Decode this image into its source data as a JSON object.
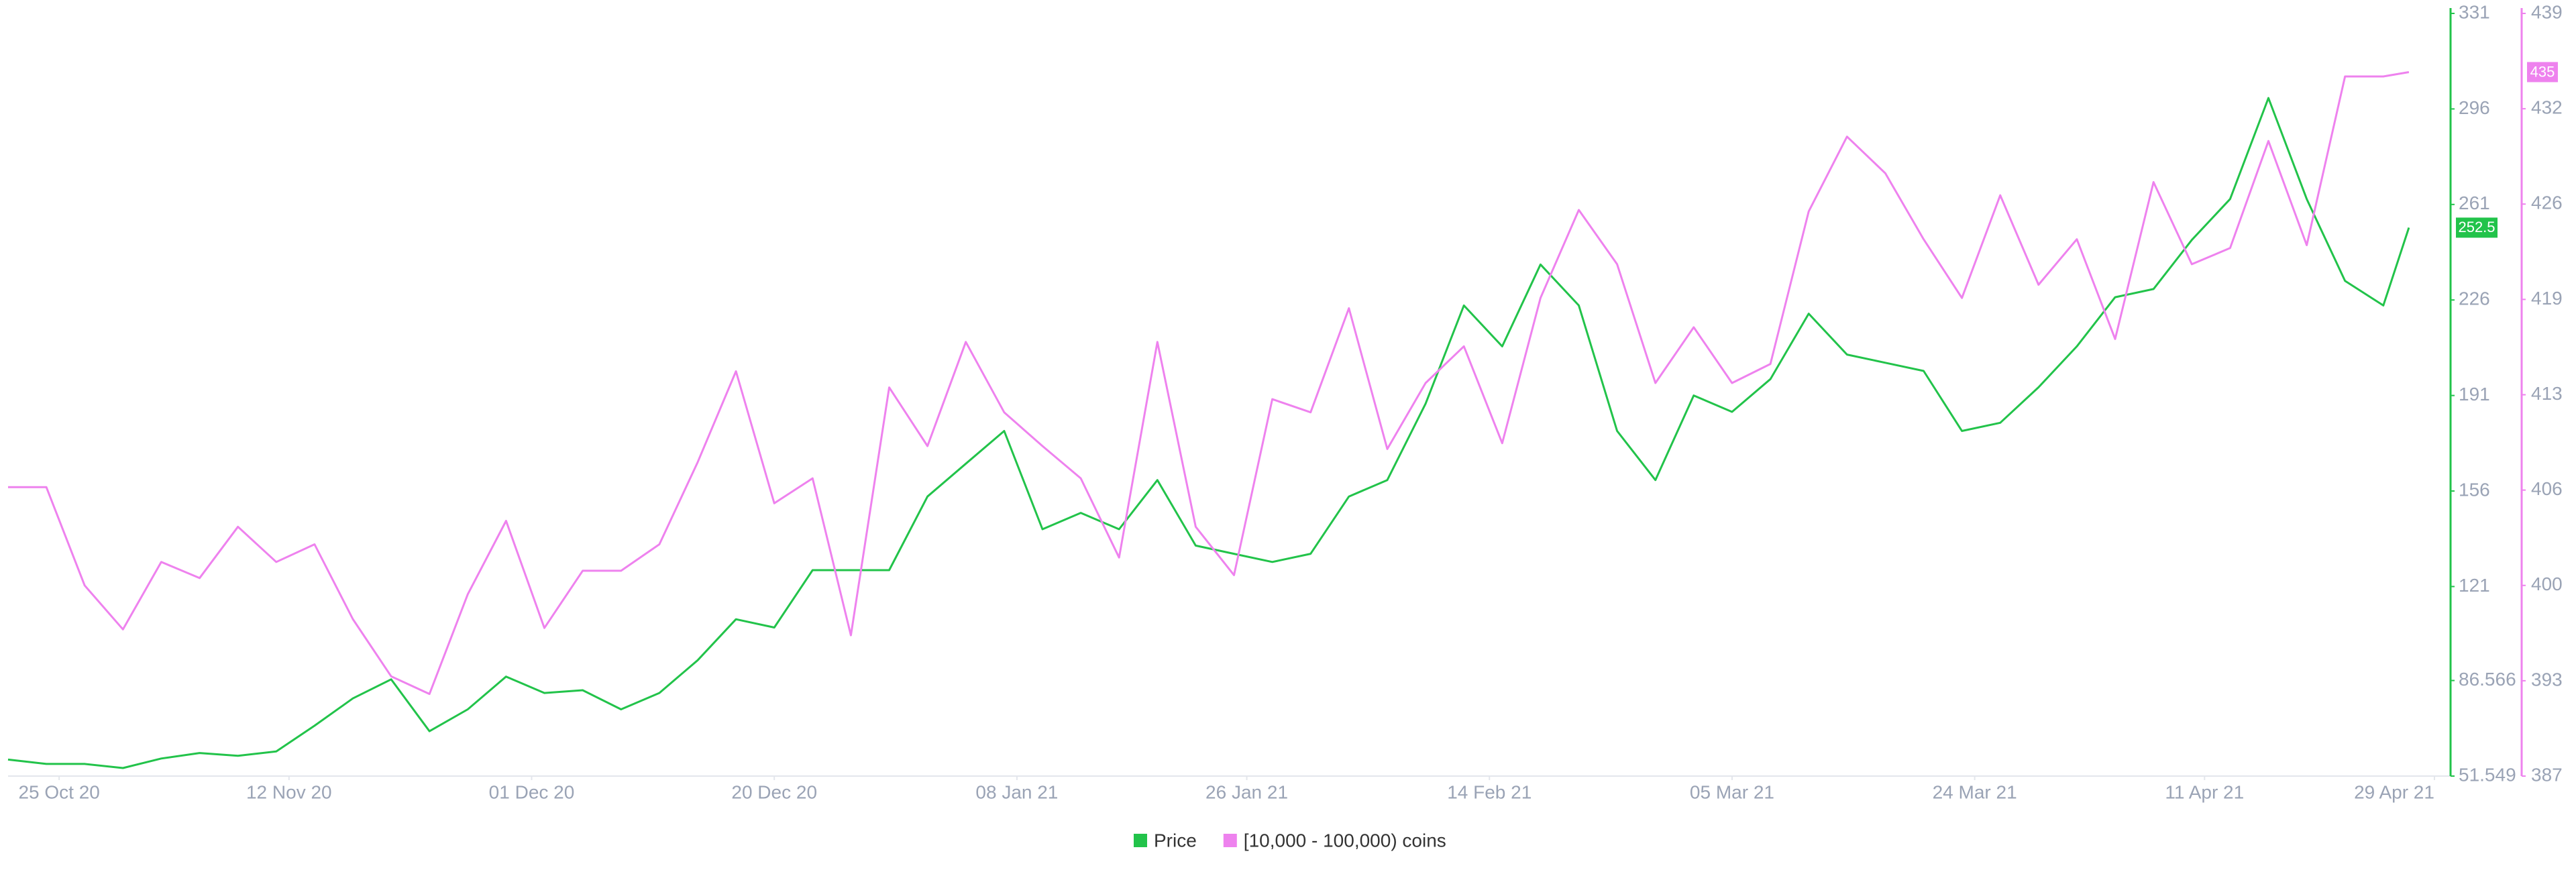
{
  "chart_data": {
    "type": "line",
    "x": [
      "2020-10-21",
      "2020-10-24",
      "2020-10-27",
      "2020-10-30",
      "2020-11-02",
      "2020-11-05",
      "2020-11-08",
      "2020-11-11",
      "2020-11-14",
      "2020-11-17",
      "2020-11-20",
      "2020-11-23",
      "2020-11-26",
      "2020-11-29",
      "2020-12-02",
      "2020-12-05",
      "2020-12-08",
      "2020-12-11",
      "2020-12-14",
      "2020-12-17",
      "2020-12-20",
      "2020-12-23",
      "2020-12-26",
      "2020-12-29",
      "2021-01-01",
      "2021-01-04",
      "2021-01-07",
      "2021-01-10",
      "2021-01-13",
      "2021-01-16",
      "2021-01-19",
      "2021-01-22",
      "2021-01-25",
      "2021-01-28",
      "2021-01-31",
      "2021-02-03",
      "2021-02-06",
      "2021-02-09",
      "2021-02-12",
      "2021-02-15",
      "2021-02-18",
      "2021-02-21",
      "2021-02-24",
      "2021-02-27",
      "2021-03-02",
      "2021-03-05",
      "2021-03-08",
      "2021-03-11",
      "2021-03-14",
      "2021-03-17",
      "2021-03-20",
      "2021-03-23",
      "2021-03-26",
      "2021-03-29",
      "2021-04-01",
      "2021-04-04",
      "2021-04-07",
      "2021-04-10",
      "2021-04-13",
      "2021-04-16",
      "2021-04-19",
      "2021-04-22",
      "2021-04-25",
      "2021-04-27"
    ],
    "xlim": [
      "2020-10-21",
      "2021-04-30"
    ],
    "xticks": [
      {
        "value": "2020-10-25",
        "label": "25 Oct 20"
      },
      {
        "value": "2020-11-12",
        "label": "12 Nov 20"
      },
      {
        "value": "2020-12-01",
        "label": "01 Dec 20"
      },
      {
        "value": "2020-12-20",
        "label": "20 Dec 20"
      },
      {
        "value": "2021-01-08",
        "label": "08 Jan 21"
      },
      {
        "value": "2021-01-26",
        "label": "26 Jan 21"
      },
      {
        "value": "2021-02-14",
        "label": "14 Feb 21"
      },
      {
        "value": "2021-03-05",
        "label": "05 Mar 21"
      },
      {
        "value": "2021-03-24",
        "label": "24 Mar 21"
      },
      {
        "value": "2021-04-11",
        "label": "11 Apr 21"
      },
      {
        "value": "2021-04-29",
        "label": "29 Apr 21"
      }
    ],
    "ylim": [
      51.549,
      331
    ],
    "yticks": [
      51.549,
      86.566,
      121,
      156,
      191,
      226,
      261,
      296,
      331
    ],
    "y2lim": [
      387,
      439
    ],
    "y2ticks": [
      387,
      {
        "value": 393.5,
        "label": "393"
      },
      400,
      {
        "value": 406.5,
        "label": "406"
      },
      413,
      {
        "value": 419.5,
        "label": "419"
      },
      426,
      {
        "value": 432.5,
        "label": "432"
      },
      439
    ],
    "series": [
      {
        "name": "Price",
        "color": "#22c34a",
        "end_label": 252.5,
        "values": [
          57.6,
          56,
          56,
          54.5,
          58,
          60,
          59,
          60.6,
          70,
          80,
          87,
          68,
          76,
          88,
          82,
          83,
          76,
          82,
          94,
          109,
          106,
          127,
          127,
          127,
          154,
          166,
          178,
          142,
          148,
          142,
          160,
          136,
          133,
          130,
          133,
          154,
          160,
          188,
          224,
          209,
          239,
          224,
          178,
          160,
          191,
          185,
          197,
          221,
          206,
          203,
          200,
          178,
          181,
          194,
          209,
          227,
          230,
          248,
          263,
          300,
          263,
          233,
          224,
          252.5
        ]
      },
      {
        "name": "[10,000 - 100,000) coins",
        "color": "#ee82ee",
        "axis": "y2",
        "end_label": 435,
        "values": [
          406.7,
          406.7,
          400,
          397,
          401.6,
          400.5,
          404,
          401.6,
          402.8,
          397.7,
          393.8,
          392.6,
          399.4,
          404.4,
          397.1,
          401,
          401,
          402.8,
          408.4,
          414.6,
          405.6,
          407.3,
          396.6,
          413.5,
          409.5,
          416.6,
          411.8,
          409.5,
          407.3,
          401.9,
          416.6,
          404,
          400.7,
          412.7,
          411.8,
          418.9,
          409.3,
          413.8,
          416.3,
          409.7,
          419.6,
          425.6,
          421.9,
          413.8,
          417.6,
          413.8,
          415.1,
          425.5,
          430.6,
          428.1,
          423.6,
          419.6,
          426.6,
          420.5,
          423.6,
          416.8,
          427.5,
          421.9,
          423,
          430.3,
          423.2,
          434.7,
          434.7,
          435
        ]
      }
    ],
    "legend": "bottom"
  }
}
